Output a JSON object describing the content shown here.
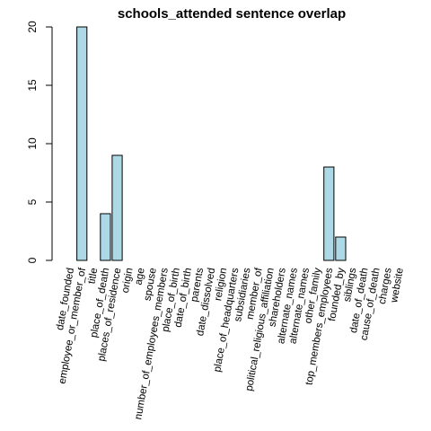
{
  "chart_data": {
    "type": "bar",
    "title": "schools_attended sentence overlap",
    "xlabel": "",
    "ylabel": "",
    "ylim": [
      0,
      20
    ],
    "yticks": [
      0,
      5,
      10,
      15,
      20
    ],
    "grid": false,
    "categories": [
      "date_founded",
      "employee_or_member_of",
      "title",
      "place_of_death",
      "places_of_residence",
      "origin",
      "age",
      "spouse",
      "number_of_employees_members",
      "place_of_birth",
      "date_of_birth",
      "parents",
      "date_dissolved",
      "religion",
      "place_of_headquarters",
      "subsidiaries",
      "member_of",
      "political_religious_affiliation",
      "shareholders",
      "alternate_names",
      "alternate_names",
      "other_family",
      "top_members_employees",
      "founded_by",
      "siblings",
      "date_of_death",
      "cause_of_death",
      "charges",
      "website"
    ],
    "values": [
      0,
      20,
      0,
      4,
      9,
      0,
      0,
      0,
      0,
      0,
      0,
      0,
      0,
      0,
      0,
      0,
      0,
      0,
      0,
      0,
      0,
      0,
      8,
      2,
      0,
      0,
      0,
      0,
      0
    ]
  }
}
